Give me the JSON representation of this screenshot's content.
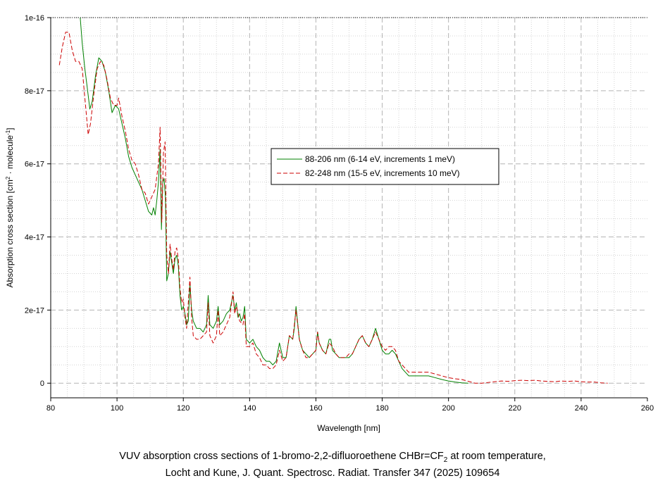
{
  "chart_data": {
    "type": "line",
    "xlabel": "Wavelength [nm]",
    "ylabel_parts": {
      "pre": "Absorption cross section [cm",
      "sup1": "2",
      "mid": " · molecule",
      "sup2": "-1",
      "post": "]"
    },
    "xlim": [
      80,
      260
    ],
    "ylim": [
      -4e-18,
      1e-16
    ],
    "x_ticks": [
      80,
      100,
      120,
      140,
      160,
      180,
      200,
      220,
      240,
      260
    ],
    "y_ticks": [
      0,
      2e-17,
      4e-17,
      6e-17,
      8e-17,
      1e-16
    ],
    "y_tick_labels": [
      "0",
      "2e-17",
      "4e-17",
      "6e-17",
      "8e-17",
      "1e-16"
    ],
    "grid": true,
    "legend_position": "center-right",
    "series": [
      {
        "name": "88-206 nm (6-14 eV, increments 1 meV)",
        "color": "#008000",
        "dash": "solid",
        "points": [
          [
            88.9,
            1e-16
          ],
          [
            89.5,
            9.3e-17
          ],
          [
            90.3,
            8.6e-17
          ],
          [
            91,
            8.1e-17
          ],
          [
            91.8,
            7.5e-17
          ],
          [
            92.5,
            7.7e-17
          ],
          [
            93.5,
            8.4e-17
          ],
          [
            94.5,
            8.9e-17
          ],
          [
            95.5,
            8.8e-17
          ],
          [
            96.5,
            8.5e-17
          ],
          [
            97.5,
            8e-17
          ],
          [
            98.5,
            7.4e-17
          ],
          [
            99.5,
            7.6e-17
          ],
          [
            100.5,
            7.5e-17
          ],
          [
            101.5,
            7.1e-17
          ],
          [
            102.5,
            6.7e-17
          ],
          [
            103.5,
            6.2e-17
          ],
          [
            104.5,
            5.9e-17
          ],
          [
            105.5,
            5.7e-17
          ],
          [
            106.5,
            5.5e-17
          ],
          [
            107.5,
            5.3e-17
          ],
          [
            108.5,
            5e-17
          ],
          [
            109.5,
            4.7e-17
          ],
          [
            110.5,
            4.6e-17
          ],
          [
            111,
            4.8e-17
          ],
          [
            111.5,
            4.6e-17
          ],
          [
            112,
            5e-17
          ],
          [
            112.5,
            5.5e-17
          ],
          [
            113,
            6.4e-17
          ],
          [
            113.4,
            4.2e-17
          ],
          [
            113.8,
            5.5e-17
          ],
          [
            114.2,
            5.6e-17
          ],
          [
            114.6,
            5.1e-17
          ],
          [
            115,
            2.8e-17
          ],
          [
            115.5,
            3e-17
          ],
          [
            116,
            3.6e-17
          ],
          [
            116.5,
            3.3e-17
          ],
          [
            117,
            3e-17
          ],
          [
            117.5,
            3.4e-17
          ],
          [
            118,
            3.5e-17
          ],
          [
            118.5,
            3.2e-17
          ],
          [
            119,
            2.4e-17
          ],
          [
            119.5,
            2e-17
          ],
          [
            120,
            2.1e-17
          ],
          [
            120.5,
            1.9e-17
          ],
          [
            121,
            1.6e-17
          ],
          [
            121.5,
            1.7e-17
          ],
          [
            122,
            2.7e-17
          ],
          [
            122.5,
            2e-17
          ],
          [
            123,
            1.7e-17
          ],
          [
            124,
            1.5e-17
          ],
          [
            125,
            1.5e-17
          ],
          [
            126,
            1.4e-17
          ],
          [
            127,
            1.6e-17
          ],
          [
            127.5,
            2.4e-17
          ],
          [
            128,
            1.6e-17
          ],
          [
            129,
            1.5e-17
          ],
          [
            130,
            1.7e-17
          ],
          [
            130.5,
            2.1e-17
          ],
          [
            131,
            1.6e-17
          ],
          [
            132,
            1.7e-17
          ],
          [
            133,
            1.9e-17
          ],
          [
            134,
            2e-17
          ],
          [
            135,
            2.4e-17
          ],
          [
            135.5,
            2e-17
          ],
          [
            136,
            2.2e-17
          ],
          [
            136.5,
            1.8e-17
          ],
          [
            137,
            1.9e-17
          ],
          [
            137.5,
            1.7e-17
          ],
          [
            138,
            1.8e-17
          ],
          [
            138.5,
            2.1e-17
          ],
          [
            139,
            1.2e-17
          ],
          [
            140,
            1.1e-17
          ],
          [
            141,
            1.2e-17
          ],
          [
            142,
            1e-17
          ],
          [
            143,
            9e-18
          ],
          [
            144,
            7e-18
          ],
          [
            145,
            6e-18
          ],
          [
            146,
            6e-18
          ],
          [
            147,
            5e-18
          ],
          [
            148,
            6e-18
          ],
          [
            149,
            1.1e-17
          ],
          [
            150,
            7e-18
          ],
          [
            151,
            7e-18
          ],
          [
            152,
            1.3e-17
          ],
          [
            153,
            1.2e-17
          ],
          [
            153.5,
            1.5e-17
          ],
          [
            154,
            2.1e-17
          ],
          [
            155,
            1.2e-17
          ],
          [
            156,
            9e-18
          ],
          [
            157,
            8e-18
          ],
          [
            158,
            7e-18
          ],
          [
            159,
            8e-18
          ],
          [
            160,
            9e-18
          ],
          [
            160.5,
            1.4e-17
          ],
          [
            161,
            1.1e-17
          ],
          [
            162,
            9e-18
          ],
          [
            163,
            8e-18
          ],
          [
            164,
            1.2e-17
          ],
          [
            164.5,
            1.2e-17
          ],
          [
            165,
            9e-18
          ],
          [
            166,
            8e-18
          ],
          [
            167,
            7e-18
          ],
          [
            168,
            7e-18
          ],
          [
            169,
            7e-18
          ],
          [
            170,
            7e-18
          ],
          [
            171,
            8e-18
          ],
          [
            172,
            1e-17
          ],
          [
            173,
            1.2e-17
          ],
          [
            174,
            1.3e-17
          ],
          [
            175,
            1.1e-17
          ],
          [
            176,
            1e-17
          ],
          [
            177,
            1.2e-17
          ],
          [
            178,
            1.5e-17
          ],
          [
            179,
            1.2e-17
          ],
          [
            180,
            9e-18
          ],
          [
            181,
            8e-18
          ],
          [
            182,
            8e-18
          ],
          [
            183,
            9e-18
          ],
          [
            184,
            8e-18
          ],
          [
            185,
            6e-18
          ],
          [
            186,
            4e-18
          ],
          [
            187,
            3e-18
          ],
          [
            188,
            2e-18
          ],
          [
            190,
            2e-18
          ],
          [
            192,
            2e-18
          ],
          [
            194,
            2e-18
          ],
          [
            196,
            1.5e-18
          ],
          [
            198,
            1e-18
          ],
          [
            200,
            6e-19
          ],
          [
            202,
            3e-19
          ],
          [
            204,
            1e-19
          ],
          [
            206,
            0
          ]
        ]
      },
      {
        "name": "82-248 nm (15-5 eV, increments 10 meV)",
        "color": "#cc0000",
        "dash": "dashed",
        "points": [
          [
            82.6,
            8.7e-17
          ],
          [
            83.5,
            9.2e-17
          ],
          [
            84.5,
            9.6e-17
          ],
          [
            85.5,
            9.6e-17
          ],
          [
            86.5,
            9.1e-17
          ],
          [
            87.5,
            8.8e-17
          ],
          [
            88.5,
            8.8e-17
          ],
          [
            89.5,
            8.6e-17
          ],
          [
            90.5,
            7.6e-17
          ],
          [
            91.3,
            6.8e-17
          ],
          [
            92,
            7.1e-17
          ],
          [
            93,
            7.9e-17
          ],
          [
            94,
            8.6e-17
          ],
          [
            95,
            8.8e-17
          ],
          [
            96,
            8.7e-17
          ],
          [
            97,
            8.3e-17
          ],
          [
            98,
            7.8e-17
          ],
          [
            99,
            7.6e-17
          ],
          [
            100,
            7.6e-17
          ],
          [
            100.5,
            7.8e-17
          ],
          [
            101.5,
            7.3e-17
          ],
          [
            102.5,
            6.9e-17
          ],
          [
            103.5,
            6.4e-17
          ],
          [
            104.5,
            6.1e-17
          ],
          [
            105.5,
            6e-17
          ],
          [
            106.5,
            5.7e-17
          ],
          [
            107.5,
            5.3e-17
          ],
          [
            108.5,
            5.2e-17
          ],
          [
            109.5,
            4.9e-17
          ],
          [
            110.5,
            5.1e-17
          ],
          [
            111.5,
            5.3e-17
          ],
          [
            112.5,
            6e-17
          ],
          [
            113,
            7e-17
          ],
          [
            113.5,
            4.4e-17
          ],
          [
            114,
            6.3e-17
          ],
          [
            114.5,
            6.6e-17
          ],
          [
            115,
            3.5e-17
          ],
          [
            115.5,
            3e-17
          ],
          [
            116,
            3.8e-17
          ],
          [
            116.5,
            3.4e-17
          ],
          [
            117,
            3.1e-17
          ],
          [
            117.5,
            3.6e-17
          ],
          [
            118,
            3.7e-17
          ],
          [
            118.5,
            3.4e-17
          ],
          [
            119,
            2.6e-17
          ],
          [
            119.5,
            2.2e-17
          ],
          [
            120,
            2.3e-17
          ],
          [
            120.5,
            1.8e-17
          ],
          [
            121,
            1.5e-17
          ],
          [
            122,
            2.9e-17
          ],
          [
            122.5,
            1.8e-17
          ],
          [
            123,
            1.3e-17
          ],
          [
            124,
            1.2e-17
          ],
          [
            125,
            1.2e-17
          ],
          [
            126,
            1.3e-17
          ],
          [
            127,
            1.4e-17
          ],
          [
            127.5,
            2.2e-17
          ],
          [
            128,
            1.3e-17
          ],
          [
            129,
            1.1e-17
          ],
          [
            130,
            1.3e-17
          ],
          [
            130.5,
            2e-17
          ],
          [
            131,
            1.3e-17
          ],
          [
            132,
            1.4e-17
          ],
          [
            133,
            1.6e-17
          ],
          [
            134,
            1.8e-17
          ],
          [
            135,
            2.5e-17
          ],
          [
            135.5,
            1.9e-17
          ],
          [
            136,
            2.1e-17
          ],
          [
            137,
            1.7e-17
          ],
          [
            138,
            1.6e-17
          ],
          [
            138.5,
            1.9e-17
          ],
          [
            139,
            1e-17
          ],
          [
            140,
            1e-17
          ],
          [
            141,
            1.1e-17
          ],
          [
            142,
            8e-18
          ],
          [
            143,
            7e-18
          ],
          [
            144,
            5e-18
          ],
          [
            145,
            5e-18
          ],
          [
            146,
            4e-18
          ],
          [
            147,
            4e-18
          ],
          [
            148,
            5e-18
          ],
          [
            149,
            9e-18
          ],
          [
            150,
            6e-18
          ],
          [
            151,
            7e-18
          ],
          [
            152,
            1.3e-17
          ],
          [
            153,
            1.2e-17
          ],
          [
            154,
            2e-17
          ],
          [
            155,
            1.2e-17
          ],
          [
            156,
            9e-18
          ],
          [
            157,
            7e-18
          ],
          [
            158,
            7e-18
          ],
          [
            159,
            8e-18
          ],
          [
            160,
            9e-18
          ],
          [
            160.5,
            1.4e-17
          ],
          [
            161,
            1.1e-17
          ],
          [
            162,
            9e-18
          ],
          [
            163,
            8e-18
          ],
          [
            164,
            1.1e-17
          ],
          [
            165,
            1e-17
          ],
          [
            166,
            8e-18
          ],
          [
            167,
            7e-18
          ],
          [
            168,
            7e-18
          ],
          [
            169,
            7e-18
          ],
          [
            170,
            8e-18
          ],
          [
            171,
            8e-18
          ],
          [
            172,
            1e-17
          ],
          [
            173,
            1.2e-17
          ],
          [
            174,
            1.3e-17
          ],
          [
            175,
            1.1e-17
          ],
          [
            176,
            1e-17
          ],
          [
            177,
            1.2e-17
          ],
          [
            178,
            1.4e-17
          ],
          [
            179,
            1.2e-17
          ],
          [
            180,
            1e-17
          ],
          [
            181,
            9e-18
          ],
          [
            182,
            1e-17
          ],
          [
            183,
            1e-17
          ],
          [
            184,
            9e-18
          ],
          [
            185,
            6e-18
          ],
          [
            186,
            5e-18
          ],
          [
            187,
            4e-18
          ],
          [
            188,
            3e-18
          ],
          [
            190,
            3e-18
          ],
          [
            192,
            3e-18
          ],
          [
            194,
            3e-18
          ],
          [
            196,
            2.5e-18
          ],
          [
            198,
            2e-18
          ],
          [
            200,
            1.5e-18
          ],
          [
            202,
            1.2e-18
          ],
          [
            204,
            1e-18
          ],
          [
            206,
            5e-19
          ],
          [
            208,
            0
          ],
          [
            210,
            0
          ],
          [
            212,
            2e-19
          ],
          [
            214,
            4e-19
          ],
          [
            216,
            6e-19
          ],
          [
            218,
            5e-19
          ],
          [
            220,
            7e-19
          ],
          [
            222,
            8e-19
          ],
          [
            224,
            7e-19
          ],
          [
            226,
            8e-19
          ],
          [
            228,
            6e-19
          ],
          [
            230,
            5e-19
          ],
          [
            232,
            4e-19
          ],
          [
            234,
            6e-19
          ],
          [
            236,
            5e-19
          ],
          [
            238,
            6e-19
          ],
          [
            240,
            4e-19
          ],
          [
            242,
            3e-19
          ],
          [
            244,
            3e-19
          ],
          [
            246,
            1e-19
          ],
          [
            248,
            0
          ]
        ]
      }
    ]
  },
  "caption": {
    "line1_pre": "VUV absorption cross sections of 1-bromo-2,2-difluoroethene CHBr=CF",
    "line1_sub": "2",
    "line1_post": " at room temperature,",
    "line2": "Locht and Kune, J. Quant. Spectrosc. Radiat. Transfer 347 (2025) 109654"
  }
}
